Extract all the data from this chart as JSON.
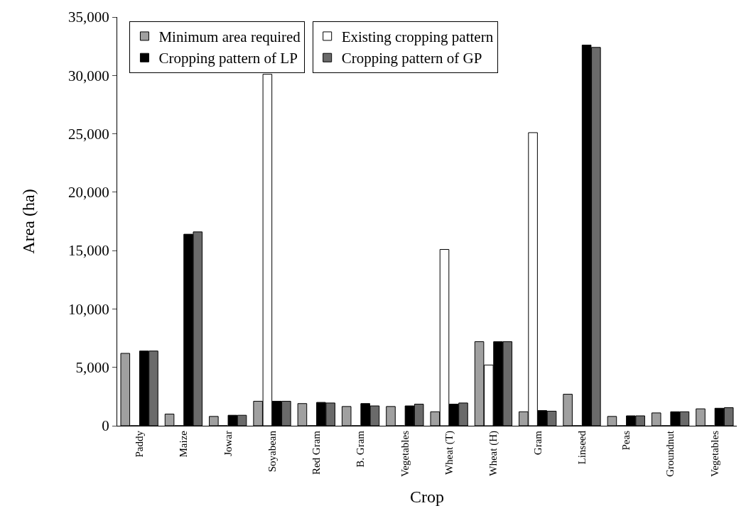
{
  "chart_data": {
    "type": "bar",
    "xlabel": "Crop",
    "ylabel": "Area (ha)",
    "categories": [
      "Paddy",
      "Maize",
      "Jowar",
      "Soyabean",
      "Red Gram",
      "B. Gram",
      "Vegetables",
      "Wheat (T)",
      "Wheat (H)",
      "Gram",
      "Linseed",
      "Peas",
      "Groundnut",
      "Vegetables"
    ],
    "series": [
      {
        "name": "Minimum area required",
        "color": "#a0a0a0",
        "values": [
          6200,
          1000,
          800,
          2100,
          1900,
          1650,
          1650,
          1200,
          7200,
          1200,
          2700,
          800,
          1100,
          1450
        ]
      },
      {
        "name": "Existing cropping pattern",
        "color": "#ffffff",
        "values": [
          0,
          0,
          0,
          30100,
          0,
          0,
          0,
          15100,
          5200,
          25100,
          0,
          0,
          0,
          0
        ]
      },
      {
        "name": "Cropping pattern of LP",
        "color": "#000000",
        "values": [
          6400,
          16400,
          900,
          2100,
          2000,
          1900,
          1700,
          1850,
          7200,
          1300,
          32600,
          850,
          1200,
          1500
        ]
      },
      {
        "name": "Cropping pattern of GP",
        "color": "#6a6a6a",
        "values": [
          6400,
          16600,
          900,
          2100,
          1950,
          1700,
          1850,
          1950,
          7200,
          1250,
          32400,
          850,
          1200,
          1550
        ]
      }
    ],
    "ylim": [
      0,
      35000
    ],
    "yticks": [
      {
        "value": 0,
        "label": "0"
      },
      {
        "value": 5000,
        "label": "5,000"
      },
      {
        "value": 10000,
        "label": "10,000"
      },
      {
        "value": 15000,
        "label": "15,000"
      },
      {
        "value": 20000,
        "label": "20,000"
      },
      {
        "value": 25000,
        "label": "25,000"
      },
      {
        "value": 30000,
        "label": "30,000"
      },
      {
        "value": 35000,
        "label": "35,000"
      }
    ],
    "grid": false,
    "legend": "top left"
  }
}
